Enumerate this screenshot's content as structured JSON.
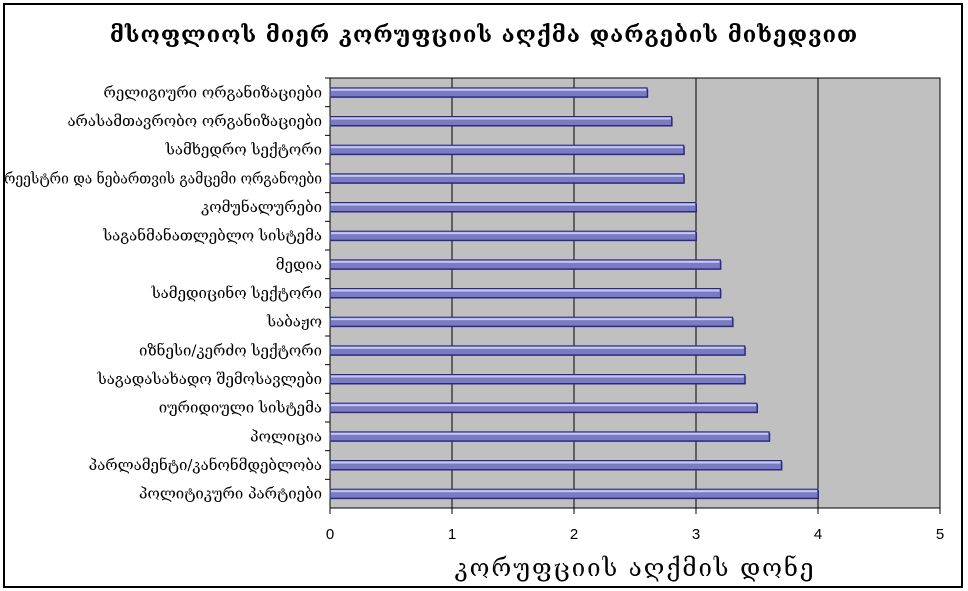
{
  "chart_data": {
    "type": "bar",
    "orientation": "horizontal",
    "title": "მსოფლიოს მიერ კორუფციის აღქმა დარგების მიხედვით",
    "xlabel": "კორუფციის აღქმის დონე",
    "ylabel": "",
    "xlim": [
      0,
      5
    ],
    "xticks": [
      0,
      1,
      2,
      3,
      4,
      5
    ],
    "grid": true,
    "categories": [
      "რელიგიური ორგანიზაციები",
      "არასამთავრობო ორგანიზაციები",
      "სამხედრო სექტორი",
      "რეესტრი და ნებართვის გამცემი ორგანოები",
      "კომუნალურები",
      "საგანმანათლებლო სისტემა",
      "მედია",
      "სამედიცინო სექტორი",
      "საბაჟო",
      "იზნესი/კერძო სექტორი",
      "საგადასახადო შემოსავლები",
      "იურიდიული სისტემა",
      "პოლიცია",
      "პარლამენტი/კანონმდებლობა",
      "პოლიტიკური პარტიები"
    ],
    "values": [
      2.6,
      2.8,
      2.9,
      2.9,
      3.0,
      3.0,
      3.2,
      3.2,
      3.3,
      3.4,
      3.4,
      3.5,
      3.6,
      3.7,
      4.0
    ],
    "colors": {
      "bar_fill": "#7b7bc4",
      "bar_highlight": "#c8c8f0",
      "bar_shadow": "#2a2a80",
      "plot_background": "#c0c0c0",
      "grid": "#000000"
    }
  }
}
